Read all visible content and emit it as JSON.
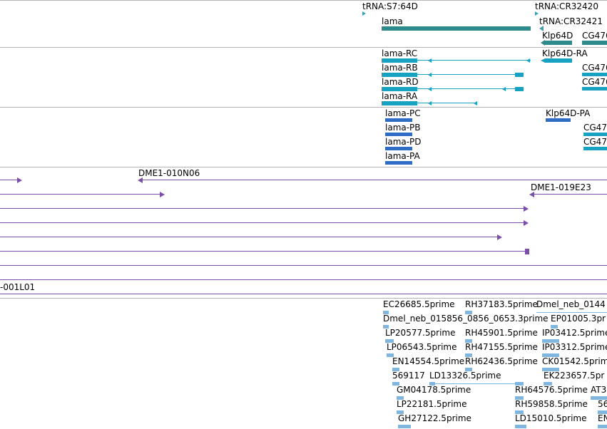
{
  "colors": {
    "gene": "#2e8b8b",
    "trna": "#3fa0b0",
    "transcript": "#17a2c2",
    "cds": "#2f6cc6",
    "clone": "#7a4fa8",
    "est": "#7fb6e0",
    "separator": "#b4b4b4"
  },
  "tracks": {
    "genes": {
      "labels": [
        "tRNA:S7:64D",
        "tRNA:CR32420",
        "lama",
        "tRNA:CR32421",
        "Klp64D",
        "CG476"
      ]
    },
    "transcripts": {
      "labels": [
        "lama-RC",
        "lama-RB",
        "lama-RD",
        "lama-RA",
        "Klp64D-RA",
        "CG476",
        "CG476"
      ]
    },
    "polypeptides": {
      "labels": [
        "lama-PC",
        "lama-PB",
        "lama-PD",
        "lama-PA",
        "Klp64D-PA",
        "CG47",
        "CG47"
      ]
    },
    "bac_clones": {
      "labels": [
        "DME1-010N06",
        "DME1-019E23",
        "-001L01"
      ]
    },
    "est_alignments": {
      "labels": [
        "EC26685.5prime",
        "RH37183.5prime",
        "Dmel_neb_0144",
        "Dmel_neb_015856_0856_0653.3prime",
        "EP01005.3pr",
        "LP20577.5prime",
        "RH45901.5prime",
        "IP03412.5prime",
        "LP06543.5prime",
        "RH47155.5prime",
        "IP03312.5prime",
        "EN14554.5prime",
        "RH62436.5prime",
        "CK01542.5prime",
        "569117",
        "LD13326.5prime",
        "EK223657.5pr",
        "GM04178.5prime",
        "RH64576.5prime",
        "AT3",
        "LP22181.5prime",
        "RH59858.5prime",
        "56",
        "GH27122.5prime",
        "LD15010.5prime",
        "EN"
      ]
    }
  }
}
